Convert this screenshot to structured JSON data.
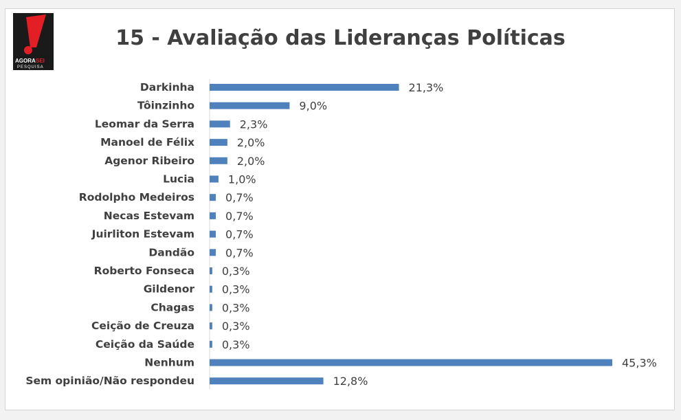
{
  "chart_data": {
    "type": "bar",
    "orientation": "horizontal",
    "title": "15 - Avaliação das Lideranças Políticas",
    "categories": [
      "Darkinha",
      "Tôinzinho",
      "Leomar da Serra",
      "Manoel de Félix",
      "Agenor Ribeiro",
      "Lucia",
      "Rodolpho Medeiros",
      "Necas Estevam",
      "Juirliton Estevam",
      "Dandão",
      "Roberto Fonseca",
      "Gildenor",
      "Chagas",
      "Ceição de Creuza",
      "Ceição da Saúde",
      "Nenhum",
      "Sem opinião/Não respondeu"
    ],
    "values": [
      21.3,
      9.0,
      2.3,
      2.0,
      2.0,
      1.0,
      0.7,
      0.7,
      0.7,
      0.7,
      0.3,
      0.3,
      0.3,
      0.3,
      0.3,
      45.3,
      12.8
    ],
    "value_labels": [
      "21,3%",
      "9,0%",
      "2,3%",
      "2,0%",
      "2,0%",
      "1,0%",
      "0,7%",
      "0,7%",
      "0,7%",
      "0,7%",
      "0,3%",
      "0,3%",
      "0,3%",
      "0,3%",
      "0,3%",
      "45,3%",
      "12,8%"
    ],
    "bar_color": "#4f81bd",
    "grid": false,
    "legend": "none"
  },
  "logo": {
    "line1": "AGORA",
    "line1_accent": "SEI",
    "line2": "PESQUISA",
    "accent_color": "#e31e24",
    "background": "#1a1a1a"
  }
}
